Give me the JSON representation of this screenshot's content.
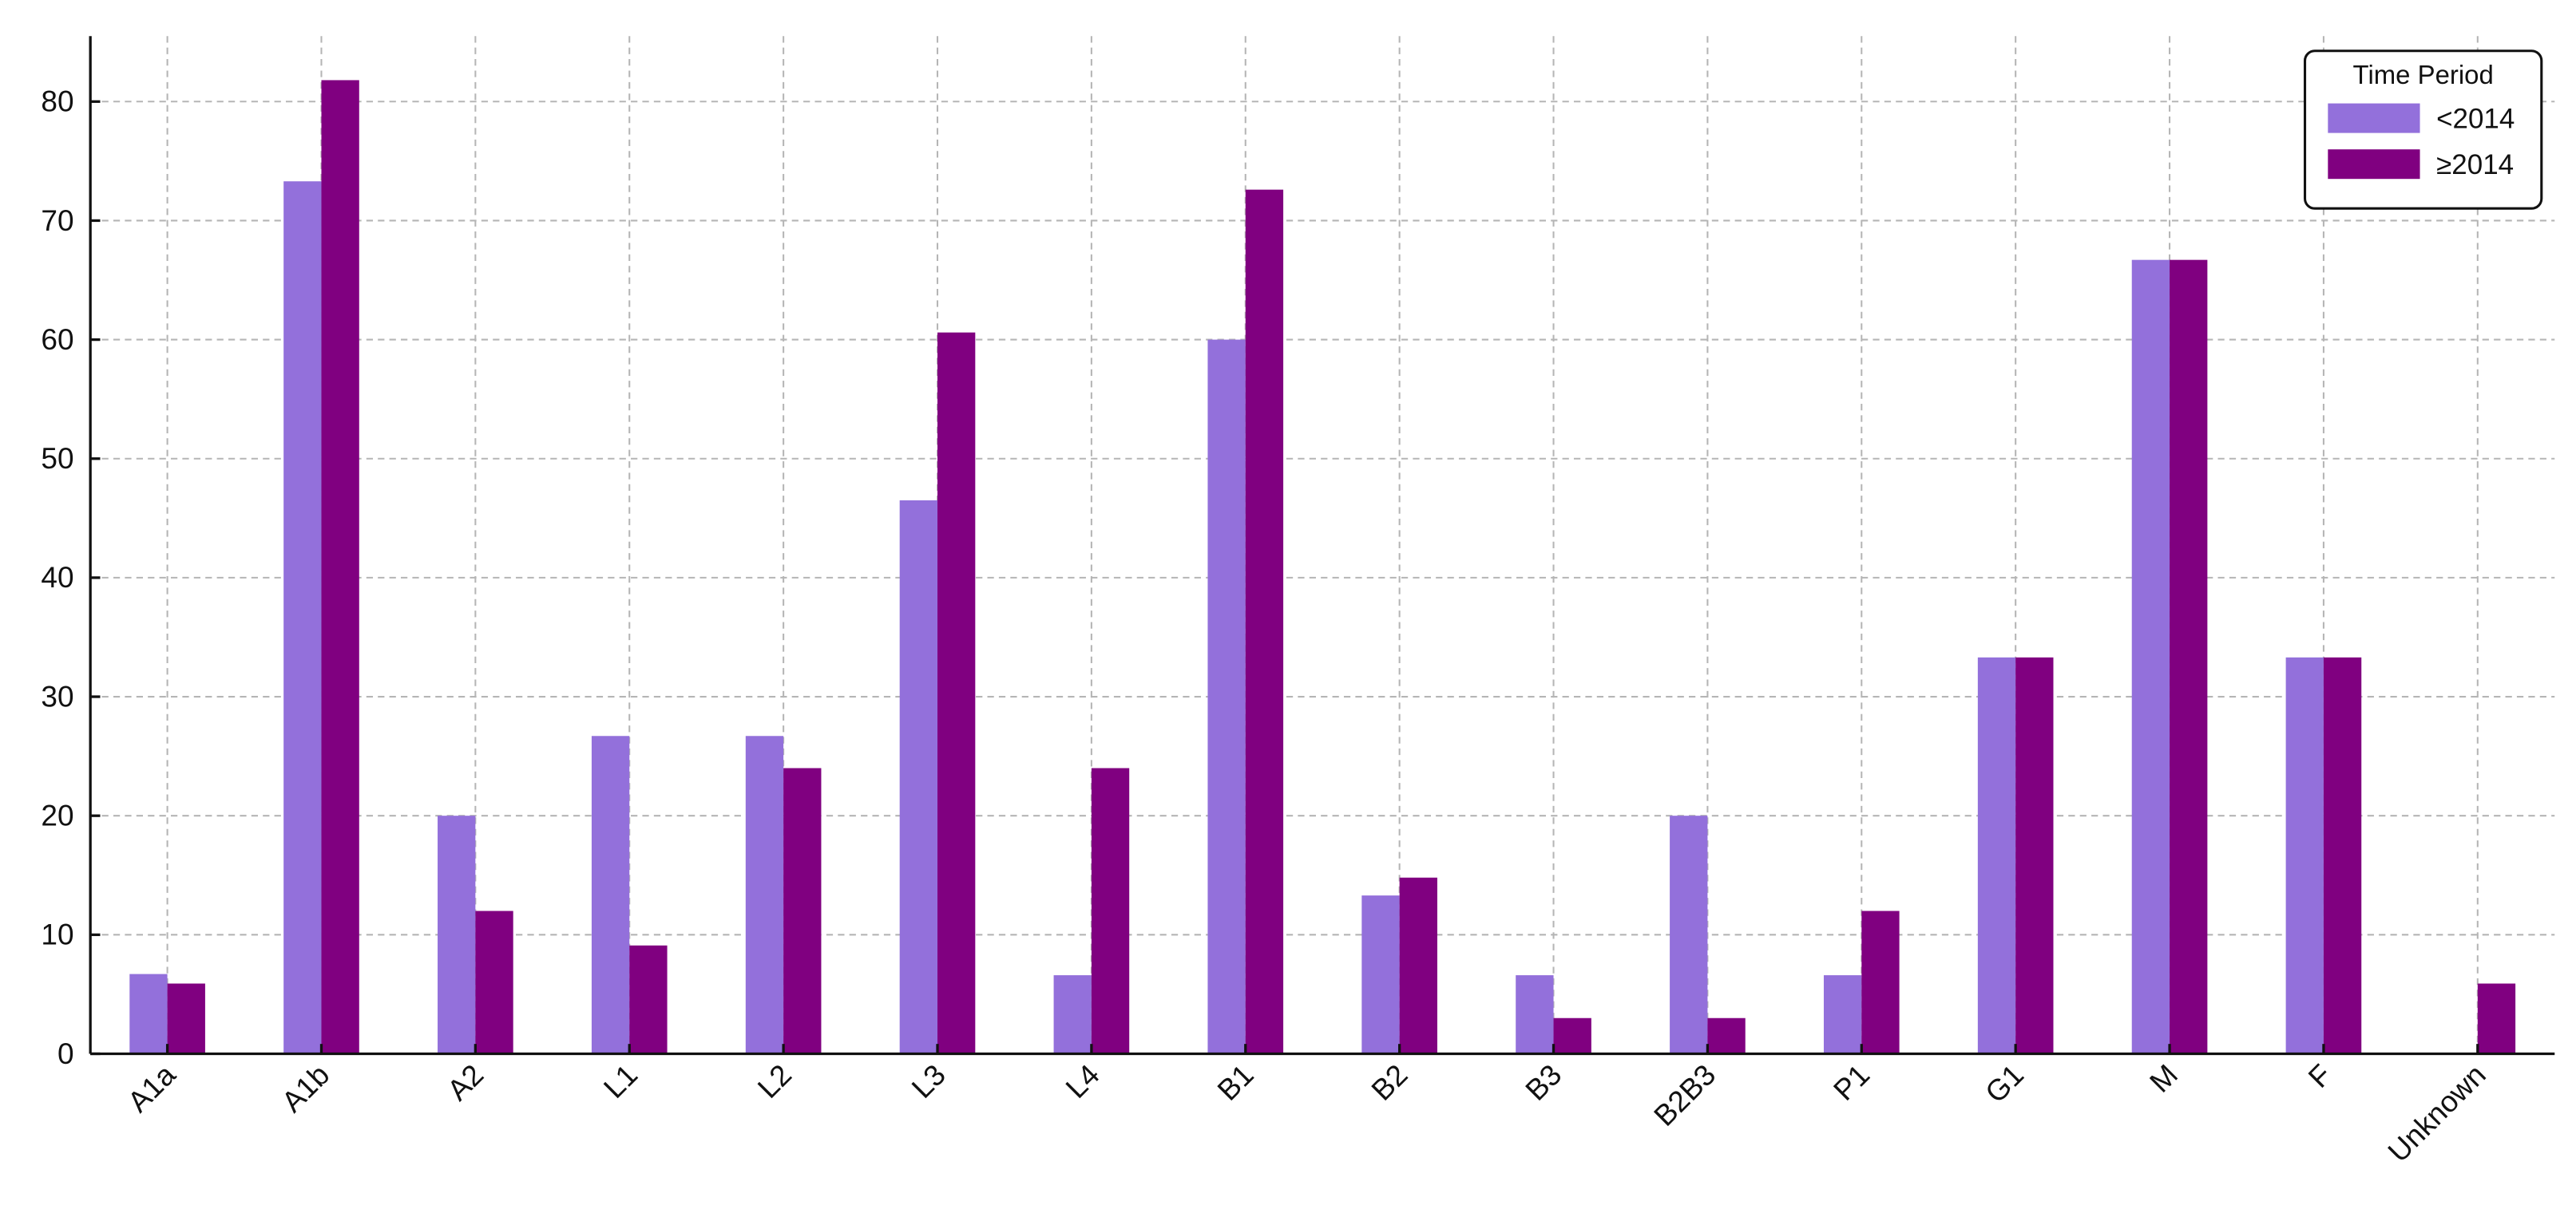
{
  "chart_data": {
    "type": "bar",
    "categories": [
      "A1a",
      "A1b",
      "A2",
      "L1",
      "L2",
      "L3",
      "L4",
      "B1",
      "B2",
      "B3",
      "B2B3",
      "P1",
      "G1",
      "M",
      "F",
      "Unknown"
    ],
    "series": [
      {
        "name": "<2014",
        "color": "#9370db",
        "values": [
          6.7,
          73.3,
          20,
          26.7,
          26.7,
          46.5,
          6.6,
          60,
          13.3,
          6.6,
          20,
          6.6,
          33.3,
          66.7,
          33.3,
          0
        ]
      },
      {
        "name": "≥2014",
        "color": "#800080",
        "values": [
          5.9,
          81.8,
          12,
          9.1,
          24,
          60.6,
          24,
          72.6,
          14.8,
          3,
          3,
          12,
          33.3,
          66.7,
          33.3,
          5.9
        ]
      }
    ],
    "ylim": [
      0,
      85.5
    ],
    "yticks": [
      0,
      10,
      20,
      30,
      40,
      50,
      60,
      70,
      80
    ],
    "grid": true,
    "legend_title": "Time Period",
    "legend": "upper right"
  }
}
